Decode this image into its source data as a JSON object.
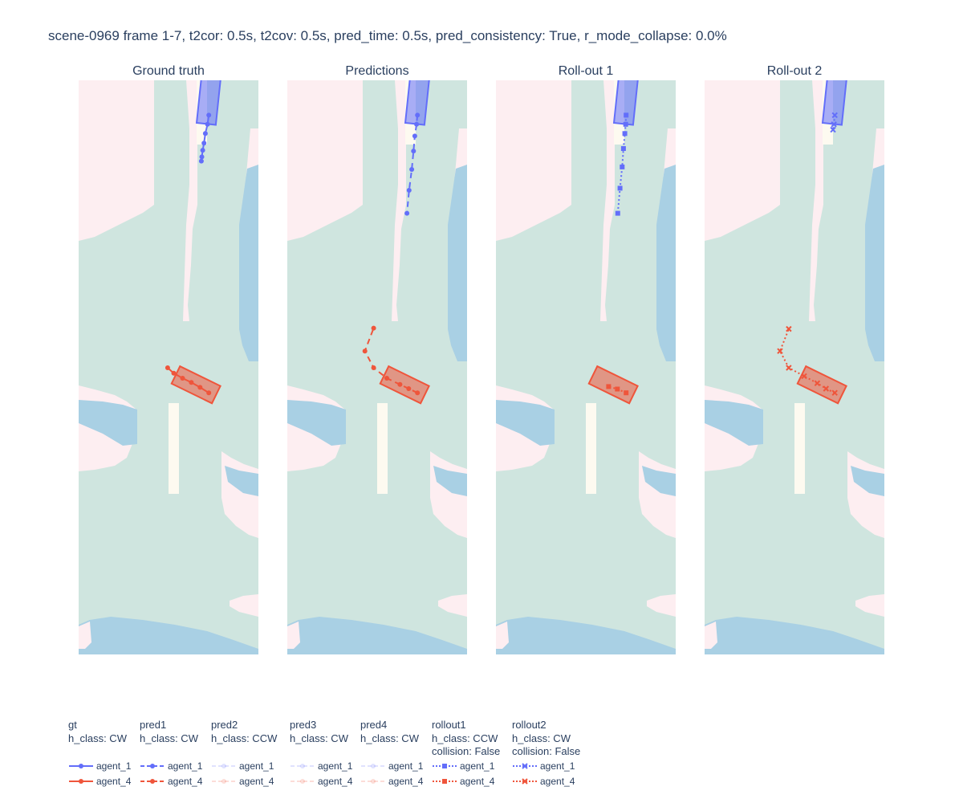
{
  "title": "scene-0969 frame 1-7, t2cor: 0.5s, t2cov: 0.5s, pred_time: 0.5s, pred_consistency: True, r_mode_collapse: 0.0%",
  "colors": {
    "agent_1": "#636efa",
    "agent_4": "#ef553b",
    "lane": "#cfe5df",
    "sidewalk": "#fdeef1",
    "crosswalk": "#a9d0e4",
    "divider": "#fdfaf0"
  },
  "chart_data": [
    {
      "type": "scatter",
      "subplot": "Ground truth",
      "series": [
        {
          "name": "agent_1",
          "legendgroup": "gt",
          "line": "solid",
          "marker": "circle",
          "x": [
            7.0,
            6.7,
            6.2,
            5.9,
            5.6,
            5.4,
            5.3
          ],
          "y": [
            58.0,
            55.8,
            53.6,
            51.3,
            49.6,
            48.0,
            47.0
          ]
        },
        {
          "name": "agent_4",
          "legendgroup": "gt",
          "line": "solid",
          "marker": "circle",
          "x": [
            7.0,
            5.0,
            3.0,
            1.0,
            -1.0,
            -2.4
          ],
          "y": [
            -8.5,
            -7.2,
            -6.0,
            -5.0,
            -3.8,
            -2.5
          ]
        }
      ]
    },
    {
      "type": "scatter",
      "subplot": "Predictions",
      "series": [
        {
          "name": "agent_1",
          "legendgroup": "pred1",
          "line": "dash",
          "marker": "circle",
          "x": [
            7.0,
            6.8,
            6.4,
            6.1,
            5.7,
            5.1,
            4.6
          ],
          "y": [
            58.0,
            55.8,
            53.0,
            49.4,
            45.0,
            40.0,
            34.5
          ]
        },
        {
          "name": "agent_4",
          "legendgroup": "pred1",
          "line": "dash",
          "marker": "circle",
          "x": [
            7.0,
            5.0,
            3.0,
            0.0,
            -3.0,
            -5.0,
            -3.0
          ],
          "y": [
            -8.5,
            -7.5,
            -6.5,
            -5.0,
            -2.5,
            1.5,
            7.0
          ]
        }
      ]
    },
    {
      "type": "scatter",
      "subplot": "Roll-out 1",
      "series": [
        {
          "name": "agent_1",
          "legendgroup": "rollout1",
          "line": "dot",
          "marker": "square",
          "x": [
            7.0,
            6.9,
            6.7,
            6.4,
            6.1,
            5.6,
            5.1
          ],
          "y": [
            58.0,
            55.8,
            53.6,
            50.0,
            45.6,
            40.5,
            34.5
          ]
        },
        {
          "name": "agent_4",
          "legendgroup": "rollout1",
          "line": "dot",
          "marker": "square",
          "x": [
            7.0,
            5.0,
            3.0
          ],
          "y": [
            -8.5,
            -7.6,
            -7.0
          ]
        }
      ]
    },
    {
      "type": "scatter",
      "subplot": "Roll-out 2",
      "series": [
        {
          "name": "agent_1",
          "legendgroup": "rollout2",
          "line": "dot",
          "marker": "x",
          "x": [
            7.0,
            6.8,
            6.6
          ],
          "y": [
            58.0,
            55.8,
            54.5
          ]
        },
        {
          "name": "agent_4",
          "legendgroup": "rollout2",
          "line": "dot",
          "marker": "x",
          "x": [
            7.0,
            5.0,
            3.0,
            0.0,
            -3.5,
            -5.5,
            -3.5
          ],
          "y": [
            -8.5,
            -7.5,
            -6.2,
            -4.5,
            -2.5,
            1.5,
            6.8
          ]
        }
      ]
    }
  ],
  "subplots": [
    {
      "title": "Ground truth"
    },
    {
      "title": "Predictions"
    },
    {
      "title": "Roll-out 1"
    },
    {
      "title": "Roll-out 2"
    }
  ],
  "legend": {
    "groups": [
      {
        "lines": [
          "gt",
          "h_class: CW"
        ],
        "items": [
          {
            "label": "agent_1",
            "series": "agent_1",
            "line": "solid",
            "marker": "circle",
            "faded": false
          },
          {
            "label": "agent_4",
            "series": "agent_4",
            "line": "solid",
            "marker": "circle",
            "faded": false
          }
        ]
      },
      {
        "lines": [
          "pred1",
          "h_class: CW"
        ],
        "items": [
          {
            "label": "agent_1",
            "series": "agent_1",
            "line": "dash",
            "marker": "circle",
            "faded": false
          },
          {
            "label": "agent_4",
            "series": "agent_4",
            "line": "dash",
            "marker": "circle",
            "faded": false
          }
        ]
      },
      {
        "lines": [
          "pred2",
          "h_class: CCW"
        ],
        "items": [
          {
            "label": "agent_1",
            "series": "agent_1",
            "line": "dash",
            "marker": "circle",
            "faded": true
          },
          {
            "label": "agent_4",
            "series": "agent_4",
            "line": "dash",
            "marker": "circle",
            "faded": true
          }
        ]
      },
      {
        "lines": [
          "pred3",
          "h_class: CW"
        ],
        "items": [
          {
            "label": "agent_1",
            "series": "agent_1",
            "line": "dash",
            "marker": "circle",
            "faded": true
          },
          {
            "label": "agent_4",
            "series": "agent_4",
            "line": "dash",
            "marker": "circle",
            "faded": true
          }
        ]
      },
      {
        "lines": [
          "pred4",
          "h_class: CW"
        ],
        "items": [
          {
            "label": "agent_1",
            "series": "agent_1",
            "line": "dash",
            "marker": "circle",
            "faded": true
          },
          {
            "label": "agent_4",
            "series": "agent_4",
            "line": "dash",
            "marker": "circle",
            "faded": true
          }
        ]
      },
      {
        "lines": [
          "rollout1",
          "h_class: CCW",
          "collision: False"
        ],
        "items": [
          {
            "label": "agent_1",
            "series": "agent_1",
            "line": "dot",
            "marker": "square",
            "faded": false
          },
          {
            "label": "agent_4",
            "series": "agent_4",
            "line": "dot",
            "marker": "square",
            "faded": false
          }
        ]
      },
      {
        "lines": [
          "rollout2",
          "h_class: CW",
          "collision: False"
        ],
        "items": [
          {
            "label": "agent_1",
            "series": "agent_1",
            "line": "dot",
            "marker": "x",
            "faded": false
          },
          {
            "label": "agent_4",
            "series": "agent_4",
            "line": "dot",
            "marker": "x",
            "faded": false
          }
        ]
      }
    ]
  }
}
